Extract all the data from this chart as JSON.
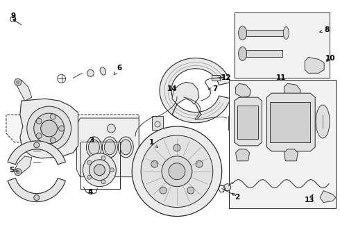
{
  "bg_color": "#ffffff",
  "line_color": "#2a2a2a",
  "label_color": "#000000",
  "fig_w": 4.9,
  "fig_h": 3.6,
  "dpi": 100
}
